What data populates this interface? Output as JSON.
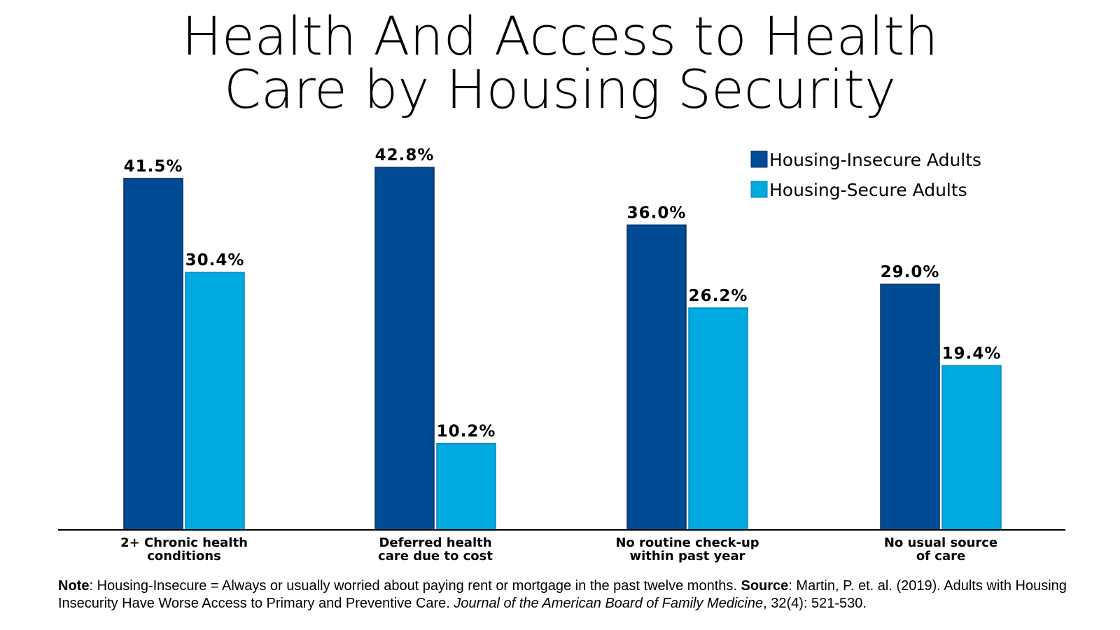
{
  "title": {
    "line1": "Health And Access to Health",
    "line2": "Care by Housing Security"
  },
  "colors": {
    "insecure": "#004b93",
    "secure": "#00a9e0",
    "axis": "#000000"
  },
  "chart_data": {
    "type": "bar",
    "title": "Health And Access to Health Care by Housing Security",
    "xlabel": "",
    "ylabel": "",
    "ylim": [
      0,
      50
    ],
    "grid": false,
    "legend_placement": "top-right",
    "categories": [
      [
        "2+ Chronic health",
        "conditions"
      ],
      [
        "Deferred health",
        "care due to cost"
      ],
      [
        "No routine check-up",
        "within past year"
      ],
      [
        "No usual source",
        "of care"
      ]
    ],
    "series": [
      {
        "name": "Housing-Insecure Adults",
        "values": [
          41.5,
          42.8,
          36.0,
          29.0
        ],
        "labels": [
          "41.5%",
          "42.8%",
          "36.0%",
          "29.0%"
        ]
      },
      {
        "name": "Housing-Secure Adults",
        "values": [
          30.4,
          10.2,
          26.2,
          19.4
        ],
        "labels": [
          "30.4%",
          "10.2%",
          "26.2%",
          "19.4%"
        ]
      }
    ]
  },
  "note": {
    "note_label": "Note",
    "note_text": ": Housing-Insecure = Always or usually worried about paying rent or mortgage in the past twelve months. ",
    "source_label": "Source",
    "source_text": ": Martin, P. et. al. (2019). Adults with Housing Insecurity Have Worse Access to Primary and Preventive Care. ",
    "journal": "Journal of the American Board of Family Medicine",
    "citation_tail": ", 32(4): 521-530."
  }
}
